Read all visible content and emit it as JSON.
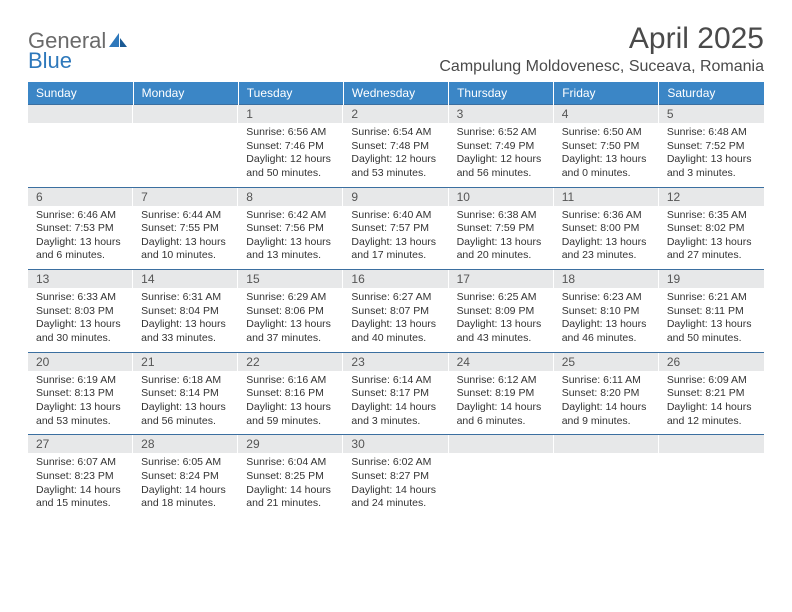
{
  "brand": {
    "part1": "General",
    "part2": "Blue"
  },
  "title": "April 2025",
  "location": "Campulung Moldovenesc, Suceava, Romania",
  "colors": {
    "header_bg": "#3b86c6",
    "header_text": "#ffffff",
    "daynum_bg": "#e7e8e9",
    "cell_border": "#3b6fa0",
    "title_color": "#4a4a4a",
    "logo_gray": "#6a6a6a",
    "logo_blue": "#2e78bb"
  },
  "dayHeaders": [
    "Sunday",
    "Monday",
    "Tuesday",
    "Wednesday",
    "Thursday",
    "Friday",
    "Saturday"
  ],
  "weeks": [
    [
      null,
      null,
      {
        "n": "1",
        "sr": "Sunrise: 6:56 AM",
        "ss": "Sunset: 7:46 PM",
        "dl": "Daylight: 12 hours and 50 minutes."
      },
      {
        "n": "2",
        "sr": "Sunrise: 6:54 AM",
        "ss": "Sunset: 7:48 PM",
        "dl": "Daylight: 12 hours and 53 minutes."
      },
      {
        "n": "3",
        "sr": "Sunrise: 6:52 AM",
        "ss": "Sunset: 7:49 PM",
        "dl": "Daylight: 12 hours and 56 minutes."
      },
      {
        "n": "4",
        "sr": "Sunrise: 6:50 AM",
        "ss": "Sunset: 7:50 PM",
        "dl": "Daylight: 13 hours and 0 minutes."
      },
      {
        "n": "5",
        "sr": "Sunrise: 6:48 AM",
        "ss": "Sunset: 7:52 PM",
        "dl": "Daylight: 13 hours and 3 minutes."
      }
    ],
    [
      {
        "n": "6",
        "sr": "Sunrise: 6:46 AM",
        "ss": "Sunset: 7:53 PM",
        "dl": "Daylight: 13 hours and 6 minutes."
      },
      {
        "n": "7",
        "sr": "Sunrise: 6:44 AM",
        "ss": "Sunset: 7:55 PM",
        "dl": "Daylight: 13 hours and 10 minutes."
      },
      {
        "n": "8",
        "sr": "Sunrise: 6:42 AM",
        "ss": "Sunset: 7:56 PM",
        "dl": "Daylight: 13 hours and 13 minutes."
      },
      {
        "n": "9",
        "sr": "Sunrise: 6:40 AM",
        "ss": "Sunset: 7:57 PM",
        "dl": "Daylight: 13 hours and 17 minutes."
      },
      {
        "n": "10",
        "sr": "Sunrise: 6:38 AM",
        "ss": "Sunset: 7:59 PM",
        "dl": "Daylight: 13 hours and 20 minutes."
      },
      {
        "n": "11",
        "sr": "Sunrise: 6:36 AM",
        "ss": "Sunset: 8:00 PM",
        "dl": "Daylight: 13 hours and 23 minutes."
      },
      {
        "n": "12",
        "sr": "Sunrise: 6:35 AM",
        "ss": "Sunset: 8:02 PM",
        "dl": "Daylight: 13 hours and 27 minutes."
      }
    ],
    [
      {
        "n": "13",
        "sr": "Sunrise: 6:33 AM",
        "ss": "Sunset: 8:03 PM",
        "dl": "Daylight: 13 hours and 30 minutes."
      },
      {
        "n": "14",
        "sr": "Sunrise: 6:31 AM",
        "ss": "Sunset: 8:04 PM",
        "dl": "Daylight: 13 hours and 33 minutes."
      },
      {
        "n": "15",
        "sr": "Sunrise: 6:29 AM",
        "ss": "Sunset: 8:06 PM",
        "dl": "Daylight: 13 hours and 37 minutes."
      },
      {
        "n": "16",
        "sr": "Sunrise: 6:27 AM",
        "ss": "Sunset: 8:07 PM",
        "dl": "Daylight: 13 hours and 40 minutes."
      },
      {
        "n": "17",
        "sr": "Sunrise: 6:25 AM",
        "ss": "Sunset: 8:09 PM",
        "dl": "Daylight: 13 hours and 43 minutes."
      },
      {
        "n": "18",
        "sr": "Sunrise: 6:23 AM",
        "ss": "Sunset: 8:10 PM",
        "dl": "Daylight: 13 hours and 46 minutes."
      },
      {
        "n": "19",
        "sr": "Sunrise: 6:21 AM",
        "ss": "Sunset: 8:11 PM",
        "dl": "Daylight: 13 hours and 50 minutes."
      }
    ],
    [
      {
        "n": "20",
        "sr": "Sunrise: 6:19 AM",
        "ss": "Sunset: 8:13 PM",
        "dl": "Daylight: 13 hours and 53 minutes."
      },
      {
        "n": "21",
        "sr": "Sunrise: 6:18 AM",
        "ss": "Sunset: 8:14 PM",
        "dl": "Daylight: 13 hours and 56 minutes."
      },
      {
        "n": "22",
        "sr": "Sunrise: 6:16 AM",
        "ss": "Sunset: 8:16 PM",
        "dl": "Daylight: 13 hours and 59 minutes."
      },
      {
        "n": "23",
        "sr": "Sunrise: 6:14 AM",
        "ss": "Sunset: 8:17 PM",
        "dl": "Daylight: 14 hours and 3 minutes."
      },
      {
        "n": "24",
        "sr": "Sunrise: 6:12 AM",
        "ss": "Sunset: 8:19 PM",
        "dl": "Daylight: 14 hours and 6 minutes."
      },
      {
        "n": "25",
        "sr": "Sunrise: 6:11 AM",
        "ss": "Sunset: 8:20 PM",
        "dl": "Daylight: 14 hours and 9 minutes."
      },
      {
        "n": "26",
        "sr": "Sunrise: 6:09 AM",
        "ss": "Sunset: 8:21 PM",
        "dl": "Daylight: 14 hours and 12 minutes."
      }
    ],
    [
      {
        "n": "27",
        "sr": "Sunrise: 6:07 AM",
        "ss": "Sunset: 8:23 PM",
        "dl": "Daylight: 14 hours and 15 minutes."
      },
      {
        "n": "28",
        "sr": "Sunrise: 6:05 AM",
        "ss": "Sunset: 8:24 PM",
        "dl": "Daylight: 14 hours and 18 minutes."
      },
      {
        "n": "29",
        "sr": "Sunrise: 6:04 AM",
        "ss": "Sunset: 8:25 PM",
        "dl": "Daylight: 14 hours and 21 minutes."
      },
      {
        "n": "30",
        "sr": "Sunrise: 6:02 AM",
        "ss": "Sunset: 8:27 PM",
        "dl": "Daylight: 14 hours and 24 minutes."
      },
      null,
      null,
      null
    ]
  ]
}
